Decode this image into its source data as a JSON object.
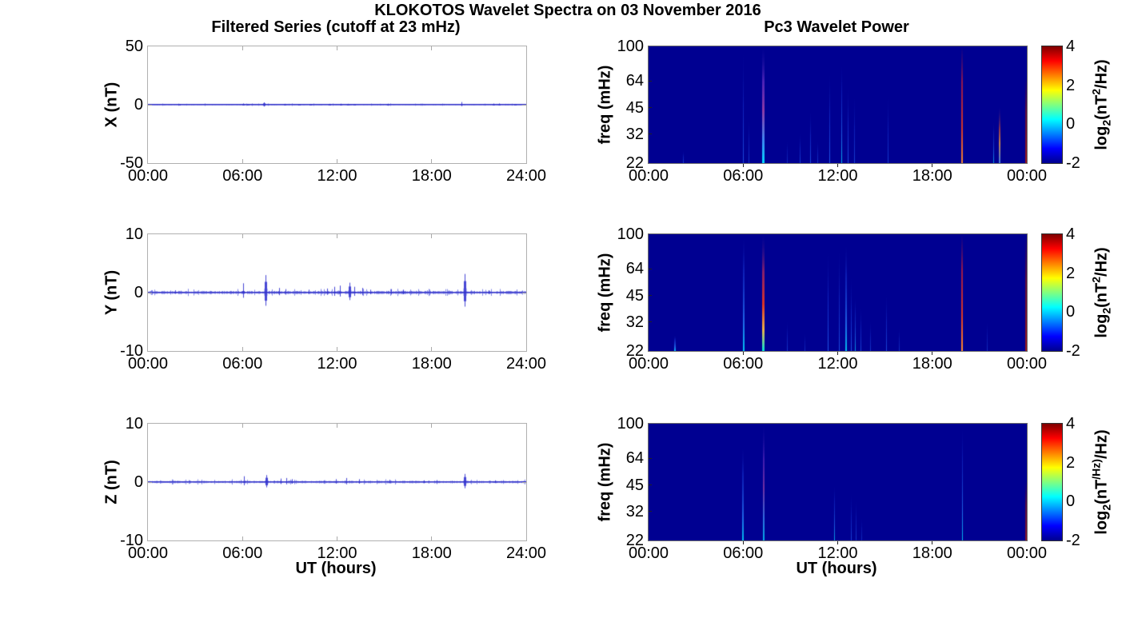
{
  "figure": {
    "title": "KLOKOTOS Wavelet Spectra on 03 November 2016"
  },
  "chart_data": [
    {
      "id": "x-filtered-series",
      "type": "line",
      "title": "Filtered Series (cutoff at 23 mHz)",
      "ylabel": "X (nT)",
      "ylim": [
        -50,
        50
      ],
      "yticks": [
        50,
        0,
        -50
      ],
      "xticks": [
        "00:00",
        "06:00",
        "12:00",
        "18:00",
        "24:00"
      ],
      "x_hours": [
        0,
        24
      ],
      "line_color": "#3b3bd2",
      "noise_amp": 0.5,
      "spikes": [
        {
          "t": 2.0,
          "a": 0.7
        },
        {
          "t": 6.05,
          "a": 1.1
        },
        {
          "t": 6.35,
          "a": 0.7
        },
        {
          "t": 7.35,
          "a": 2.0,
          "soft": true
        },
        {
          "t": 8.7,
          "a": 0.8
        },
        {
          "t": 9.6,
          "a": 0.6
        },
        {
          "t": 10.3,
          "a": 0.7
        },
        {
          "t": 11.5,
          "a": 0.8
        },
        {
          "t": 12.25,
          "a": 0.9
        },
        {
          "t": 12.7,
          "a": 0.8
        },
        {
          "t": 13.1,
          "a": 0.7
        },
        {
          "t": 15.2,
          "a": 0.6
        },
        {
          "t": 19.9,
          "a": 2.3
        },
        {
          "t": 21.9,
          "a": 1.0
        },
        {
          "t": 22.3,
          "a": 1.1
        },
        {
          "t": 23.3,
          "a": 0.7
        }
      ]
    },
    {
      "id": "y-filtered-series",
      "type": "line",
      "ylabel": "Y (nT)",
      "ylim": [
        -10,
        10
      ],
      "yticks": [
        10,
        0,
        -10
      ],
      "xticks": [
        "00:00",
        "06:00",
        "12:00",
        "18:00",
        "24:00"
      ],
      "x_hours": [
        0,
        24
      ],
      "line_color": "#3b3bd2",
      "noise_amp": 0.3,
      "spikes": [
        {
          "t": 1.7,
          "a": 0.4
        },
        {
          "t": 6.05,
          "a": 1.6
        },
        {
          "t": 7.45,
          "a": 3.0,
          "soft": true
        },
        {
          "t": 8.3,
          "a": 0.8
        },
        {
          "t": 8.75,
          "a": 0.6
        },
        {
          "t": 10.2,
          "a": 0.5
        },
        {
          "t": 11.35,
          "a": 0.7
        },
        {
          "t": 11.8,
          "a": 1.0
        },
        {
          "t": 12.2,
          "a": 1.2
        },
        {
          "t": 12.8,
          "a": 1.7,
          "soft": true
        },
        {
          "t": 13.1,
          "a": 1.0
        },
        {
          "t": 13.6,
          "a": 0.8
        },
        {
          "t": 14.1,
          "a": 0.5
        },
        {
          "t": 15.4,
          "a": 0.6
        },
        {
          "t": 16.2,
          "a": 0.5
        },
        {
          "t": 20.1,
          "a": 3.2,
          "soft": true
        },
        {
          "t": 21.6,
          "a": 0.4
        }
      ]
    },
    {
      "id": "z-filtered-series",
      "type": "line",
      "ylabel": "Z (nT)",
      "xlabel": "UT (hours)",
      "ylim": [
        -10,
        10
      ],
      "yticks": [
        10,
        0,
        -10
      ],
      "xticks": [
        "00:00",
        "06:00",
        "12:00",
        "18:00",
        "24:00"
      ],
      "x_hours": [
        0,
        24
      ],
      "line_color": "#3b3bd2",
      "noise_amp": 0.22,
      "spikes": [
        {
          "t": 6.1,
          "a": 1.0
        },
        {
          "t": 7.5,
          "a": 1.2,
          "soft": true
        },
        {
          "t": 8.4,
          "a": 0.6
        },
        {
          "t": 8.8,
          "a": 0.7
        },
        {
          "t": 9.15,
          "a": 0.5
        },
        {
          "t": 11.9,
          "a": 0.5
        },
        {
          "t": 12.6,
          "a": 0.7
        },
        {
          "t": 13.4,
          "a": 0.5
        },
        {
          "t": 15.3,
          "a": 0.4
        },
        {
          "t": 17.5,
          "a": 0.3
        },
        {
          "t": 20.1,
          "a": 1.4,
          "soft": true
        },
        {
          "t": 22.0,
          "a": 0.3
        }
      ]
    },
    {
      "id": "x-wavelet-power",
      "type": "heatmap",
      "title": "Pc3 Wavelet Power",
      "ylabel": "freq (mHz)",
      "yscale": "log",
      "ylim": [
        22,
        100
      ],
      "yticks": [
        100,
        64,
        45,
        32,
        22
      ],
      "xticks": [
        "00:00",
        "06:00",
        "12:00",
        "18:00",
        "00:00"
      ],
      "x_hours": [
        0,
        24
      ],
      "bg": "#000091",
      "colorbar": {
        "range": [
          -2,
          4
        ],
        "ticks": [
          4,
          2,
          0,
          -2
        ],
        "label": {
          "p0": "log",
          "p1": "2",
          "p2": "(nT",
          "p3": "2",
          "p4": "/Hz)"
        }
      },
      "streaks": [
        {
          "t": 2.2,
          "f": 26,
          "w": 1,
          "type": "blue",
          "a": 0.6
        },
        {
          "t": 6.0,
          "f": 100,
          "w": 1,
          "type": "blue",
          "a": 0.7
        },
        {
          "t": 6.35,
          "f": 40,
          "w": 1,
          "type": "blue",
          "a": 0.5
        },
        {
          "t": 7.3,
          "f": 100,
          "w": 3,
          "type": "multi",
          "a": 1
        },
        {
          "t": 8.8,
          "f": 30,
          "w": 1,
          "type": "blue",
          "a": 0.4
        },
        {
          "t": 9.6,
          "f": 33,
          "w": 1,
          "type": "blue",
          "a": 0.6
        },
        {
          "t": 10.3,
          "f": 45,
          "w": 1,
          "type": "blue",
          "a": 0.7
        },
        {
          "t": 10.75,
          "f": 30,
          "w": 1,
          "type": "blue",
          "a": 0.5
        },
        {
          "t": 11.5,
          "f": 75,
          "w": 1,
          "type": "blue",
          "a": 0.8
        },
        {
          "t": 12.25,
          "f": 82,
          "w": 1,
          "type": "cyan",
          "a": 0.8
        },
        {
          "t": 12.65,
          "f": 62,
          "w": 1,
          "type": "blue",
          "a": 0.7
        },
        {
          "t": 13.05,
          "f": 55,
          "w": 1,
          "type": "blue",
          "a": 0.6
        },
        {
          "t": 15.2,
          "f": 55,
          "w": 1,
          "type": "blue",
          "a": 0.55
        },
        {
          "t": 19.9,
          "f": 100,
          "w": 2,
          "type": "red",
          "a": 0.95
        },
        {
          "t": 21.9,
          "f": 38,
          "w": 1,
          "type": "cyan",
          "a": 0.7
        },
        {
          "t": 22.3,
          "f": 46,
          "w": 2,
          "type": "warm",
          "a": 0.85
        },
        {
          "t": 23.95,
          "f": 68,
          "w": 2,
          "type": "edge",
          "a": 0.9
        }
      ]
    },
    {
      "id": "y-wavelet-power",
      "type": "heatmap",
      "ylabel": "freq (mHz)",
      "yscale": "log",
      "ylim": [
        22,
        100
      ],
      "yticks": [
        100,
        64,
        45,
        32,
        22
      ],
      "xticks": [
        "00:00",
        "06:00",
        "12:00",
        "18:00",
        "00:00"
      ],
      "x_hours": [
        0,
        24
      ],
      "bg": "#000091",
      "colorbar": {
        "range": [
          -2,
          4
        ],
        "ticks": [
          4,
          2,
          0,
          -2
        ],
        "label": {
          "p0": "log",
          "p1": "2",
          "p2": "(nT",
          "p3": "2",
          "p4": "/Hz)"
        }
      },
      "streaks": [
        {
          "t": 1.67,
          "f": 27,
          "w": 2,
          "type": "cyan",
          "a": 0.85
        },
        {
          "t": 6.04,
          "f": 100,
          "w": 2,
          "type": "cyan",
          "a": 0.9
        },
        {
          "t": 7.3,
          "f": 100,
          "w": 3,
          "type": "redmulti",
          "a": 1
        },
        {
          "t": 8.8,
          "f": 33,
          "w": 1,
          "type": "blue",
          "a": 0.5
        },
        {
          "t": 9.9,
          "f": 28,
          "w": 1,
          "type": "blue",
          "a": 0.4
        },
        {
          "t": 11.4,
          "f": 85,
          "w": 1,
          "type": "blue",
          "a": 0.8
        },
        {
          "t": 12.1,
          "f": 88,
          "w": 1,
          "type": "blue",
          "a": 0.7
        },
        {
          "t": 12.55,
          "f": 90,
          "w": 2,
          "type": "cyan",
          "a": 0.85
        },
        {
          "t": 12.85,
          "f": 60,
          "w": 1,
          "type": "blue",
          "a": 0.75
        },
        {
          "t": 13.1,
          "f": 45,
          "w": 1,
          "type": "cyan",
          "a": 0.7
        },
        {
          "t": 13.45,
          "f": 40,
          "w": 1,
          "type": "blue",
          "a": 0.6
        },
        {
          "t": 14.1,
          "f": 33,
          "w": 1,
          "type": "blue",
          "a": 0.5
        },
        {
          "t": 15.1,
          "f": 48,
          "w": 1,
          "type": "blue",
          "a": 0.65
        },
        {
          "t": 15.9,
          "f": 30,
          "w": 1,
          "type": "blue",
          "a": 0.45
        },
        {
          "t": 19.9,
          "f": 100,
          "w": 2,
          "type": "red",
          "a": 1
        },
        {
          "t": 21.5,
          "f": 33,
          "w": 1,
          "type": "blue",
          "a": 0.4
        },
        {
          "t": 23.95,
          "f": 100,
          "w": 2,
          "type": "edge",
          "a": 0.9
        }
      ]
    },
    {
      "id": "z-wavelet-power",
      "type": "heatmap",
      "ylabel": "freq (mHz)",
      "xlabel": "UT (hours)",
      "yscale": "log",
      "ylim": [
        22,
        100
      ],
      "yticks": [
        100,
        64,
        45,
        32,
        22
      ],
      "xticks": [
        "00:00",
        "06:00",
        "12:00",
        "18:00",
        "00:00"
      ],
      "x_hours": [
        0,
        24
      ],
      "bg": "#000091",
      "colorbar": {
        "range": [
          -2,
          4
        ],
        "ticks": [
          4,
          2,
          0,
          -2
        ],
        "label": {
          "p0": "log",
          "p1": "2",
          "p2": "(nT",
          "p3": "2",
          "p4": "/Hz)"
        }
      },
      "streaks": [
        {
          "t": 6.0,
          "f": 76,
          "w": 2,
          "type": "cyan",
          "a": 0.85
        },
        {
          "t": 7.3,
          "f": 100,
          "w": 2,
          "type": "multi",
          "a": 0.8
        },
        {
          "t": 11.8,
          "f": 46,
          "w": 1,
          "type": "cyan",
          "a": 0.75
        },
        {
          "t": 12.85,
          "f": 42,
          "w": 1,
          "type": "blue",
          "a": 0.6
        },
        {
          "t": 13.15,
          "f": 38,
          "w": 1,
          "type": "blue",
          "a": 0.5
        },
        {
          "t": 13.5,
          "f": 30,
          "w": 1,
          "type": "blue",
          "a": 0.4
        },
        {
          "t": 19.9,
          "f": 100,
          "w": 1,
          "type": "cyan",
          "a": 0.85
        },
        {
          "t": 23.95,
          "f": 48,
          "w": 2,
          "type": "edge",
          "a": 0.8
        }
      ]
    }
  ]
}
